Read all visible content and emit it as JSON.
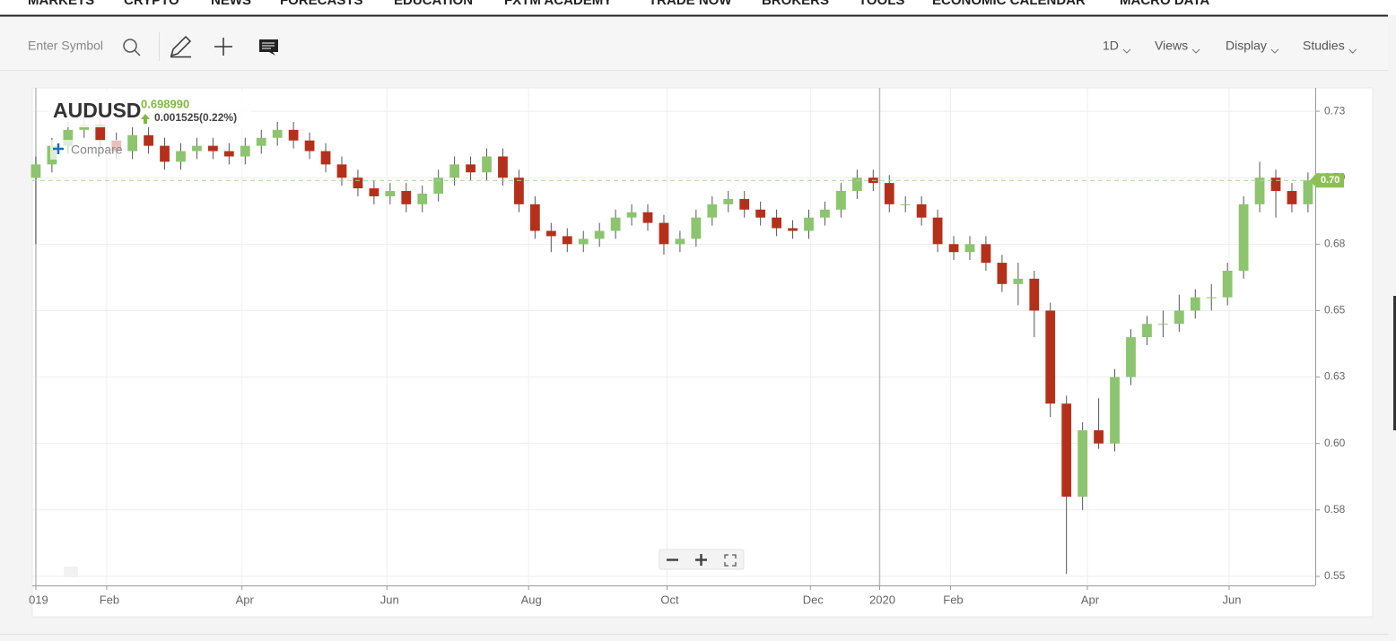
{
  "nav": [
    "MARKETS",
    "CRYPTO",
    "NEWS",
    "FORECASTS",
    "EDUCATION",
    "FXTM ACADEMY",
    "TRADE NOW",
    "BROKERS",
    "TOOLS",
    "ECONOMIC CALENDAR",
    "MACRO DATA"
  ],
  "toolbar": {
    "symbol_placeholder": "Enter Symbol",
    "menus": [
      "1D",
      "Views",
      "Display",
      "Studies"
    ]
  },
  "chart_data": {
    "type": "candlestick",
    "title": "AUDUSD",
    "price": "0.698990",
    "change": "0.001525(0.22%)",
    "compare_label": "Compare",
    "up_color": "#8cc56e",
    "down_color": "#b5301b",
    "wick_color": "#555555",
    "grid": true,
    "open": [
      0.7,
      0.705,
      0.712,
      0.718,
      0.72,
      0.714,
      0.71,
      0.716,
      0.712,
      0.706,
      0.71,
      0.712,
      0.71,
      0.708,
      0.712,
      0.715,
      0.718,
      0.714,
      0.71,
      0.705,
      0.7,
      0.696,
      0.693,
      0.695,
      0.69,
      0.694,
      0.7,
      0.705,
      0.702,
      0.708,
      0.7,
      0.69,
      0.68,
      0.678,
      0.675,
      0.677,
      0.68,
      0.685,
      0.687,
      0.683,
      0.675,
      0.677,
      0.685,
      0.69,
      0.692,
      0.688,
      0.685,
      0.681,
      0.68,
      0.685,
      0.688,
      0.695,
      0.7,
      0.698,
      0.69,
      0.69,
      0.685,
      0.675,
      0.672,
      0.675,
      0.668,
      0.66,
      0.662,
      0.65,
      0.615,
      0.58,
      0.605,
      0.6,
      0.625,
      0.64,
      0.645,
      0.645,
      0.65,
      0.655,
      0.655,
      0.665,
      0.69,
      0.7,
      0.695,
      0.69
    ],
    "high": [
      0.708,
      0.715,
      0.721,
      0.723,
      0.723,
      0.717,
      0.719,
      0.719,
      0.715,
      0.713,
      0.715,
      0.715,
      0.713,
      0.715,
      0.718,
      0.721,
      0.721,
      0.717,
      0.713,
      0.708,
      0.703,
      0.699,
      0.698,
      0.698,
      0.697,
      0.703,
      0.708,
      0.708,
      0.711,
      0.711,
      0.703,
      0.693,
      0.683,
      0.681,
      0.68,
      0.683,
      0.688,
      0.69,
      0.69,
      0.686,
      0.68,
      0.688,
      0.693,
      0.695,
      0.695,
      0.691,
      0.688,
      0.684,
      0.688,
      0.691,
      0.698,
      0.703,
      0.703,
      0.701,
      0.693,
      0.693,
      0.688,
      0.678,
      0.678,
      0.678,
      0.671,
      0.668,
      0.665,
      0.653,
      0.618,
      0.608,
      0.617,
      0.628,
      0.643,
      0.648,
      0.65,
      0.656,
      0.658,
      0.66,
      0.668,
      0.693,
      0.706,
      0.703,
      0.698,
      0.702
    ],
    "low": [
      0.675,
      0.702,
      0.709,
      0.715,
      0.711,
      0.707,
      0.707,
      0.709,
      0.703,
      0.703,
      0.707,
      0.707,
      0.705,
      0.705,
      0.709,
      0.712,
      0.711,
      0.707,
      0.702,
      0.697,
      0.693,
      0.69,
      0.69,
      0.687,
      0.687,
      0.691,
      0.697,
      0.699,
      0.699,
      0.697,
      0.687,
      0.677,
      0.672,
      0.672,
      0.672,
      0.674,
      0.677,
      0.682,
      0.68,
      0.671,
      0.672,
      0.674,
      0.682,
      0.687,
      0.685,
      0.682,
      0.678,
      0.677,
      0.677,
      0.682,
      0.685,
      0.692,
      0.695,
      0.687,
      0.687,
      0.682,
      0.672,
      0.669,
      0.669,
      0.665,
      0.657,
      0.652,
      0.64,
      0.61,
      0.551,
      0.575,
      0.598,
      0.597,
      0.622,
      0.637,
      0.64,
      0.642,
      0.647,
      0.65,
      0.652,
      0.662,
      0.687,
      0.685,
      0.687,
      0.687
    ],
    "close": [
      0.705,
      0.712,
      0.718,
      0.72,
      0.714,
      0.71,
      0.716,
      0.712,
      0.706,
      0.71,
      0.712,
      0.71,
      0.708,
      0.712,
      0.715,
      0.718,
      0.714,
      0.71,
      0.705,
      0.7,
      0.696,
      0.693,
      0.695,
      0.69,
      0.694,
      0.7,
      0.705,
      0.702,
      0.708,
      0.7,
      0.69,
      0.68,
      0.678,
      0.675,
      0.677,
      0.68,
      0.685,
      0.687,
      0.683,
      0.675,
      0.677,
      0.685,
      0.69,
      0.692,
      0.688,
      0.685,
      0.681,
      0.68,
      0.685,
      0.688,
      0.695,
      0.7,
      0.698,
      0.69,
      0.69,
      0.685,
      0.675,
      0.672,
      0.675,
      0.668,
      0.66,
      0.662,
      0.65,
      0.615,
      0.58,
      0.605,
      0.6,
      0.625,
      0.64,
      0.645,
      0.645,
      0.65,
      0.655,
      0.655,
      0.665,
      0.69,
      0.7,
      0.695,
      0.69,
      0.699
    ],
    "ylim": [
      0.5466,
      0.7338
    ],
    "yticks": [
      0.55,
      {
        "value": 0.575,
        "label": "0.58"
      },
      {
        "value": 0.6,
        "label": "0.60"
      },
      {
        "value": 0.625,
        "label": "0.63"
      },
      0.65,
      {
        "value": 0.675,
        "label": "0.68"
      },
      {
        "value": 0.7,
        "label": "0.70"
      },
      {
        "value": 0.725,
        "label": "0.73"
      }
    ],
    "xlim": [
      -0.22,
      79.45
    ],
    "xticks": [
      {
        "value": 0,
        "label": "019"
      },
      {
        "value": 4.4,
        "label": "Feb"
      },
      {
        "value": 12.8,
        "label": "Apr"
      },
      {
        "value": 21.8,
        "label": "Jun"
      },
      {
        "value": 30.6,
        "label": "Aug"
      },
      {
        "value": 39.2,
        "label": "Oct"
      },
      {
        "value": 48.1,
        "label": "Dec"
      },
      {
        "value": 52.4,
        "label": "2020"
      },
      {
        "value": 56.8,
        "label": "Feb"
      },
      {
        "value": 65.3,
        "label": "Apr"
      },
      {
        "value": 74.1,
        "label": "Jun"
      }
    ],
    "price_line": {
      "value": 0.69899,
      "label": "0.70"
    }
  }
}
